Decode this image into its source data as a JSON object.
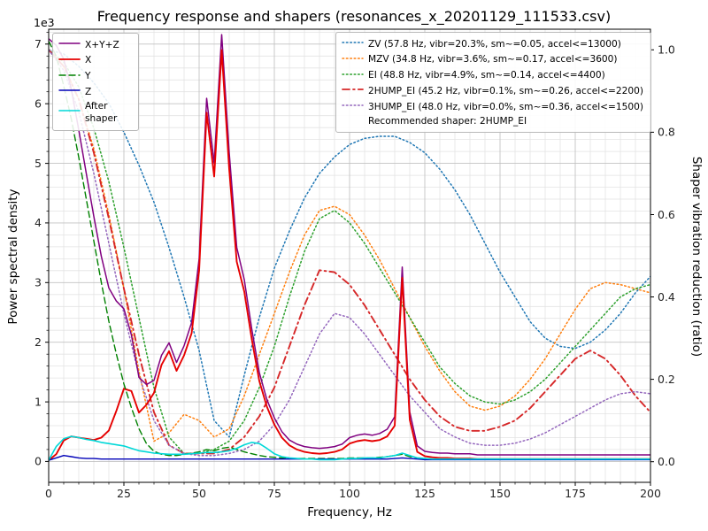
{
  "title": "Frequency response and shapers (resonances_x_20201129_111533.csv)",
  "axes": {
    "x": {
      "label": "Frequency, Hz",
      "min": 0,
      "max": 200,
      "tick_values": [
        0,
        25,
        50,
        75,
        100,
        125,
        150,
        175,
        200
      ],
      "tick_labels": [
        "0",
        "25",
        "50",
        "75",
        "100",
        "125",
        "150",
        "175",
        "200"
      ],
      "minor_step": 5
    },
    "y_left": {
      "label": "Power spectral density",
      "offset_text": "1e3",
      "lim": [
        -0.35,
        7.25
      ],
      "tick_values": [
        0,
        1,
        2,
        3,
        4,
        5,
        6,
        7
      ],
      "tick_labels": [
        "0",
        "1",
        "2",
        "3",
        "4",
        "5",
        "6",
        "7"
      ],
      "minor_step": 0.2
    },
    "y_right": {
      "label": "Shaper vibration reduction (ratio)",
      "lim": [
        -0.05,
        1.05
      ],
      "tick_values": [
        0,
        0.2,
        0.4,
        0.6,
        0.8,
        1.0
      ],
      "tick_labels": [
        "0.0",
        "0.2",
        "0.4",
        "0.6",
        "0.8",
        "1.0"
      ]
    }
  },
  "legend_right": {
    "note": "Recommended shaper: 2HUMP_EI"
  },
  "chart_data": {
    "type": "line",
    "x_unit": "Hz",
    "psd_unit": "1e3",
    "x_psd": [
      0,
      2.5,
      5,
      7.5,
      10,
      12.5,
      15,
      17.5,
      20,
      22.5,
      25,
      27.5,
      30,
      32.5,
      35,
      37.5,
      40,
      42.5,
      45,
      47.5,
      50,
      52.5,
      55,
      57.5,
      60,
      62.5,
      65,
      67.5,
      70,
      72.5,
      75,
      77.5,
      80,
      82.5,
      85,
      87.5,
      90,
      92.5,
      95,
      97.5,
      100,
      102.5,
      105,
      107.5,
      110,
      112.5,
      115,
      117.5,
      120,
      122.5,
      125,
      127.5,
      130,
      132.5,
      135,
      137.5,
      140,
      142.5,
      145,
      147.5,
      150,
      152.5,
      155,
      157.5,
      160,
      162.5,
      165,
      167.5,
      170,
      172.5,
      175,
      177.5,
      180,
      182.5,
      185,
      187.5,
      190,
      192.5,
      195,
      197.5,
      200
    ],
    "psd_series": [
      {
        "name": "X+Y+Z",
        "color": "#800080",
        "style": "solid",
        "width": 1.5,
        "values": [
          7.09,
          6.98,
          6.75,
          6.25,
          5.56,
          4.83,
          4.11,
          3.44,
          2.91,
          2.69,
          2.56,
          2.12,
          1.41,
          1.29,
          1.36,
          1.78,
          1.99,
          1.66,
          1.94,
          2.33,
          3.4,
          6.09,
          5.0,
          7.16,
          5.18,
          3.59,
          3.05,
          2.22,
          1.49,
          1.04,
          0.73,
          0.5,
          0.36,
          0.29,
          0.25,
          0.23,
          0.22,
          0.23,
          0.25,
          0.29,
          0.4,
          0.44,
          0.46,
          0.44,
          0.47,
          0.54,
          0.75,
          3.26,
          0.83,
          0.26,
          0.17,
          0.15,
          0.14,
          0.14,
          0.13,
          0.13,
          0.13,
          0.11,
          0.11,
          0.11,
          0.11,
          0.11,
          0.11,
          0.11,
          0.11,
          0.11,
          0.11,
          0.11,
          0.11,
          0.11,
          0.11,
          0.11,
          0.11,
          0.11,
          0.11,
          0.11,
          0.11,
          0.11,
          0.11,
          0.11,
          0.11
        ]
      },
      {
        "name": "X",
        "color": "#e60000",
        "style": "solid",
        "width": 1.9,
        "values": [
          0.02,
          0.12,
          0.35,
          0.42,
          0.4,
          0.38,
          0.36,
          0.4,
          0.52,
          0.85,
          1.22,
          1.18,
          0.82,
          0.95,
          1.15,
          1.62,
          1.85,
          1.52,
          1.78,
          2.15,
          3.2,
          5.85,
          4.78,
          6.9,
          4.9,
          3.35,
          2.85,
          2.05,
          1.35,
          0.92,
          0.62,
          0.4,
          0.27,
          0.2,
          0.16,
          0.14,
          0.13,
          0.14,
          0.16,
          0.2,
          0.3,
          0.34,
          0.36,
          0.34,
          0.36,
          0.42,
          0.6,
          3.08,
          0.7,
          0.16,
          0.09,
          0.07,
          0.06,
          0.06,
          0.05,
          0.05,
          0.05,
          0.04,
          0.04,
          0.04,
          0.04,
          0.04,
          0.04,
          0.04,
          0.04,
          0.04,
          0.04,
          0.04,
          0.04,
          0.04,
          0.04,
          0.04,
          0.04,
          0.04,
          0.04,
          0.04,
          0.04,
          0.04,
          0.04,
          0.04,
          0.04
        ]
      },
      {
        "name": "Y",
        "color": "#008000",
        "style": "dashed",
        "width": 1.4,
        "values": [
          7.05,
          6.8,
          6.3,
          5.75,
          5.1,
          4.4,
          3.7,
          3.0,
          2.35,
          1.8,
          1.3,
          0.9,
          0.55,
          0.3,
          0.17,
          0.12,
          0.1,
          0.1,
          0.12,
          0.14,
          0.16,
          0.2,
          0.18,
          0.22,
          0.24,
          0.2,
          0.16,
          0.13,
          0.1,
          0.08,
          0.07,
          0.06,
          0.05,
          0.05,
          0.05,
          0.05,
          0.05,
          0.05,
          0.05,
          0.05,
          0.06,
          0.06,
          0.06,
          0.06,
          0.07,
          0.08,
          0.1,
          0.12,
          0.08,
          0.06,
          0.05,
          0.04,
          0.04,
          0.04,
          0.04,
          0.04,
          0.04,
          0.04,
          0.04,
          0.04,
          0.04,
          0.04,
          0.04,
          0.04,
          0.04,
          0.04,
          0.04,
          0.04,
          0.04,
          0.04,
          0.04,
          0.04,
          0.04,
          0.04,
          0.04,
          0.04,
          0.04,
          0.04,
          0.04,
          0.04,
          0.04
        ]
      },
      {
        "name": "Z",
        "color": "#0000b8",
        "style": "solid",
        "width": 1.4,
        "values": [
          0.02,
          0.06,
          0.1,
          0.08,
          0.06,
          0.05,
          0.05,
          0.04,
          0.04,
          0.04,
          0.04,
          0.04,
          0.04,
          0.04,
          0.04,
          0.04,
          0.04,
          0.04,
          0.04,
          0.04,
          0.04,
          0.04,
          0.04,
          0.04,
          0.04,
          0.04,
          0.04,
          0.04,
          0.04,
          0.04,
          0.04,
          0.04,
          0.04,
          0.04,
          0.04,
          0.04,
          0.04,
          0.04,
          0.04,
          0.04,
          0.04,
          0.04,
          0.04,
          0.04,
          0.04,
          0.04,
          0.05,
          0.06,
          0.05,
          0.04,
          0.03,
          0.03,
          0.03,
          0.03,
          0.03,
          0.03,
          0.03,
          0.03,
          0.03,
          0.03,
          0.03,
          0.03,
          0.03,
          0.03,
          0.03,
          0.03,
          0.03,
          0.03,
          0.03,
          0.03,
          0.03,
          0.03,
          0.03,
          0.03,
          0.03,
          0.03,
          0.03,
          0.03,
          0.03,
          0.03,
          0.03
        ]
      },
      {
        "name": "After shaper",
        "color": "#00d8d8",
        "style": "solid",
        "width": 1.6,
        "values": [
          0.02,
          0.25,
          0.38,
          0.42,
          0.4,
          0.37,
          0.35,
          0.32,
          0.3,
          0.28,
          0.26,
          0.22,
          0.18,
          0.16,
          0.14,
          0.13,
          0.12,
          0.12,
          0.12,
          0.13,
          0.14,
          0.15,
          0.15,
          0.16,
          0.18,
          0.22,
          0.28,
          0.32,
          0.3,
          0.22,
          0.13,
          0.08,
          0.06,
          0.05,
          0.04,
          0.04,
          0.03,
          0.03,
          0.03,
          0.04,
          0.05,
          0.05,
          0.06,
          0.06,
          0.06,
          0.08,
          0.1,
          0.14,
          0.1,
          0.06,
          0.05,
          0.04,
          0.04,
          0.04,
          0.04,
          0.04,
          0.04,
          0.04,
          0.04,
          0.04,
          0.04,
          0.04,
          0.04,
          0.04,
          0.04,
          0.04,
          0.04,
          0.04,
          0.04,
          0.04,
          0.04,
          0.04,
          0.04,
          0.04,
          0.04,
          0.04,
          0.04,
          0.04,
          0.04,
          0.04,
          0.04
        ]
      }
    ],
    "x_shaper": [
      0,
      5,
      10,
      15,
      20,
      25,
      30,
      35,
      40,
      45,
      50,
      55,
      60,
      65,
      70,
      75,
      80,
      85,
      90,
      95,
      100,
      105,
      110,
      115,
      120,
      125,
      130,
      135,
      140,
      145,
      150,
      155,
      160,
      165,
      170,
      175,
      180,
      185,
      190,
      195,
      200
    ],
    "shaper_series": [
      {
        "name": "ZV",
        "label": "ZV (57.8 Hz, vibr=20.3%, sm~=0.05, accel<=13000)",
        "color": "#1f77b4",
        "style": "dotted",
        "width": 1.5,
        "values": [
          1.0,
          0.99,
          0.96,
          0.92,
          0.87,
          0.8,
          0.72,
          0.63,
          0.52,
          0.4,
          0.27,
          0.1,
          0.06,
          0.21,
          0.35,
          0.47,
          0.56,
          0.64,
          0.7,
          0.74,
          0.77,
          0.785,
          0.79,
          0.79,
          0.775,
          0.75,
          0.71,
          0.66,
          0.6,
          0.53,
          0.46,
          0.4,
          0.34,
          0.3,
          0.28,
          0.275,
          0.29,
          0.32,
          0.36,
          0.41,
          0.45
        ]
      },
      {
        "name": "MZV",
        "label": "MZV (34.8 Hz, vibr=3.6%, sm~=0.17, accel<=3600)",
        "color": "#ff7f0e",
        "style": "dotted",
        "width": 1.5,
        "values": [
          1.0,
          0.96,
          0.88,
          0.76,
          0.6,
          0.42,
          0.22,
          0.05,
          0.07,
          0.115,
          0.1,
          0.06,
          0.08,
          0.16,
          0.26,
          0.36,
          0.46,
          0.55,
          0.61,
          0.62,
          0.6,
          0.55,
          0.49,
          0.42,
          0.35,
          0.28,
          0.22,
          0.17,
          0.135,
          0.125,
          0.135,
          0.16,
          0.2,
          0.25,
          0.31,
          0.37,
          0.42,
          0.435,
          0.43,
          0.42,
          0.41
        ]
      },
      {
        "name": "EI",
        "label": "EI (48.8 Hz, vibr=4.9%, sm~=0.14, accel<=4400)",
        "color": "#2ca02c",
        "style": "dotted",
        "width": 1.5,
        "values": [
          1.0,
          0.97,
          0.91,
          0.81,
          0.68,
          0.52,
          0.35,
          0.18,
          0.06,
          0.02,
          0.02,
          0.03,
          0.05,
          0.1,
          0.18,
          0.28,
          0.4,
          0.51,
          0.59,
          0.61,
          0.58,
          0.53,
          0.47,
          0.41,
          0.35,
          0.29,
          0.23,
          0.19,
          0.16,
          0.145,
          0.14,
          0.15,
          0.17,
          0.2,
          0.24,
          0.28,
          0.32,
          0.36,
          0.4,
          0.42,
          0.43
        ]
      },
      {
        "name": "2HUMP_EI",
        "label": "2HUMP_EI (45.2 Hz, vibr=0.1%, sm~=0.26, accel<=2200)",
        "color": "#d62728",
        "style": "dashdot",
        "width": 1.9,
        "values": [
          1.0,
          0.96,
          0.88,
          0.75,
          0.59,
          0.42,
          0.26,
          0.12,
          0.04,
          0.02,
          0.02,
          0.02,
          0.03,
          0.06,
          0.11,
          0.18,
          0.28,
          0.38,
          0.465,
          0.46,
          0.43,
          0.38,
          0.32,
          0.26,
          0.2,
          0.15,
          0.11,
          0.085,
          0.075,
          0.075,
          0.085,
          0.1,
          0.13,
          0.17,
          0.21,
          0.25,
          0.27,
          0.25,
          0.21,
          0.16,
          0.12
        ]
      },
      {
        "name": "3HUMP_EI",
        "label": "3HUMP_EI (48.0 Hz, vibr=0.0%, sm~=0.36, accel<=1500)",
        "color": "#9467bd",
        "style": "dotted",
        "width": 1.5,
        "values": [
          1.0,
          0.95,
          0.85,
          0.7,
          0.53,
          0.36,
          0.21,
          0.1,
          0.04,
          0.02,
          0.015,
          0.015,
          0.02,
          0.03,
          0.05,
          0.09,
          0.15,
          0.23,
          0.31,
          0.36,
          0.35,
          0.31,
          0.26,
          0.21,
          0.16,
          0.12,
          0.08,
          0.06,
          0.045,
          0.04,
          0.04,
          0.045,
          0.055,
          0.07,
          0.09,
          0.11,
          0.13,
          0.15,
          0.165,
          0.17,
          0.165
        ]
      }
    ]
  }
}
